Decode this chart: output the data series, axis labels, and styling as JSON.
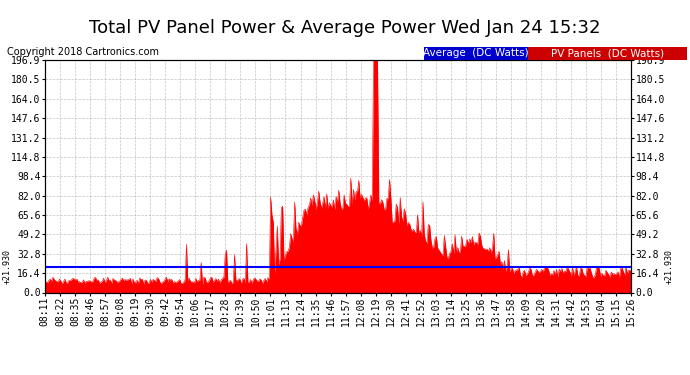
{
  "title": "Total PV Panel Power & Average Power Wed Jan 24 15:32",
  "copyright": "Copyright 2018 Cartronics.com",
  "average_value": 21.93,
  "ymax": 196.9,
  "ymin": 0.0,
  "yticks": [
    0.0,
    16.4,
    32.8,
    49.2,
    65.6,
    82.0,
    98.4,
    114.8,
    131.2,
    147.6,
    164.0,
    180.5,
    196.9
  ],
  "avg_line_color": "#0000ff",
  "pv_fill_color": "#ff0000",
  "background_color": "#ffffff",
  "grid_color": "#aaaaaa",
  "legend_avg_bg": "#0000cc",
  "legend_pv_bg": "#cc0000",
  "legend_avg_text": "Average  (DC Watts)",
  "legend_pv_text": "PV Panels  (DC Watts)",
  "xtick_labels": [
    "08:11",
    "08:22",
    "08:35",
    "08:46",
    "08:57",
    "09:08",
    "09:19",
    "09:30",
    "09:42",
    "09:54",
    "10:06",
    "10:17",
    "10:28",
    "10:39",
    "10:50",
    "11:01",
    "11:13",
    "11:24",
    "11:35",
    "11:46",
    "11:57",
    "12:08",
    "12:19",
    "12:30",
    "12:41",
    "12:52",
    "13:03",
    "13:14",
    "13:25",
    "13:36",
    "13:47",
    "13:58",
    "14:09",
    "14:20",
    "14:31",
    "14:42",
    "14:53",
    "15:04",
    "15:15",
    "15:26"
  ],
  "title_fontsize": 13,
  "axis_fontsize": 7,
  "copyright_fontsize": 7,
  "legend_fontsize": 7.5
}
